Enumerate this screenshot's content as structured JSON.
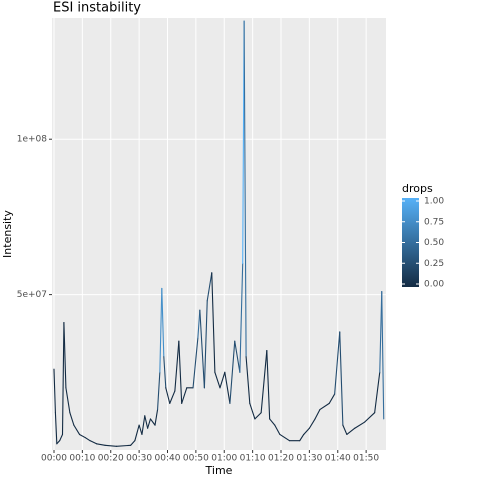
{
  "chart_data": {
    "type": "line",
    "title": "ESI instability",
    "xlabel": "Time",
    "ylabel": "Intensity",
    "x": [
      0,
      0.5,
      1,
      2,
      3,
      3.5,
      4.2,
      5.6,
      7,
      9,
      11,
      12.7,
      15,
      18,
      22,
      27,
      28.5,
      30,
      31,
      32,
      33,
      34,
      35.6,
      36.5,
      37.3,
      38,
      38.7,
      39.4,
      40.8,
      42.6,
      44,
      45,
      46.8,
      49,
      50.7,
      51.4,
      53,
      54,
      55.6,
      56.7,
      58.5,
      60.2,
      62,
      63.7,
      65.5,
      66.5,
      67,
      67.7,
      69,
      70.8,
      73,
      75,
      76,
      77.8,
      79.6,
      83,
      86.6,
      88,
      90,
      92,
      93.7,
      97,
      98.9,
      100.7,
      101.8,
      103.2,
      106,
      109.5,
      113,
      114.8,
      115.5,
      116.2
    ],
    "y": [
      26000000,
      12000000,
      2000000,
      3000000,
      5000000,
      41000000,
      20000000,
      12000000,
      8000000,
      5000000,
      4000000,
      3000000,
      2000000,
      1500000,
      1200000,
      1500000,
      3000000,
      8000000,
      5000000,
      11000000,
      7000000,
      10000000,
      8000000,
      13000000,
      25000000,
      52000000,
      30000000,
      20000000,
      15000000,
      19000000,
      35000000,
      15000000,
      20000000,
      20000000,
      36000000,
      45000000,
      20000000,
      48000000,
      57000000,
      25000000,
      20000000,
      25000000,
      15000000,
      35000000,
      25000000,
      60000000,
      138000000,
      30000000,
      15000000,
      10000000,
      12000000,
      32000000,
      10000000,
      8000000,
      5000000,
      3000000,
      3000000,
      5000000,
      7000000,
      10000000,
      13000000,
      15000000,
      18000000,
      38000000,
      8000000,
      5000000,
      7000000,
      9000000,
      12000000,
      25000000,
      51000000,
      10000000
    ],
    "drops": [
      0,
      0,
      0,
      0,
      0,
      0,
      0,
      0,
      0,
      0,
      0,
      0,
      0,
      0,
      0,
      0,
      0,
      0,
      0,
      0,
      0,
      0,
      0,
      0,
      0.5,
      1,
      0.5,
      0,
      0,
      0,
      0,
      0,
      0,
      0,
      0.5,
      0.5,
      0,
      0.5,
      0,
      0,
      0,
      0,
      0,
      0.5,
      0,
      1,
      1,
      0,
      0,
      0,
      0,
      0,
      0,
      0,
      0,
      0,
      0,
      0,
      0,
      0,
      0,
      0,
      0,
      0.5,
      0,
      0,
      0,
      0,
      0,
      0,
      1,
      0
    ],
    "xlim": [
      -0.7,
      117
    ],
    "ylim": [
      0,
      139000000
    ],
    "xticks": [
      {
        "value": 0,
        "label": "00:00"
      },
      {
        "value": 10,
        "label": "00:10"
      },
      {
        "value": 20,
        "label": "00:20"
      },
      {
        "value": 30,
        "label": "00:30"
      },
      {
        "value": 40,
        "label": "00:40"
      },
      {
        "value": 50,
        "label": "00:50"
      },
      {
        "value": 60,
        "label": "01:00"
      },
      {
        "value": 70,
        "label": "01:10"
      },
      {
        "value": 80,
        "label": "01:20"
      },
      {
        "value": 90,
        "label": "01:30"
      },
      {
        "value": 100,
        "label": "01:40"
      },
      {
        "value": 110,
        "label": "01:50"
      }
    ],
    "yticks": [
      {
        "value": 50000000,
        "label": "5e+07"
      },
      {
        "value": 100000000,
        "label": "1e+08"
      }
    ],
    "grid": true,
    "legend_title": "drops",
    "low_color": "#132b43",
    "high_color": "#56b1f7",
    "color_lim": [
      0,
      1
    ],
    "color_ticks": [
      {
        "value": 1,
        "label": "1.00"
      },
      {
        "value": 0.75,
        "label": "0.75"
      },
      {
        "value": 0.5,
        "label": "0.50"
      },
      {
        "value": 0.25,
        "label": "0.25"
      },
      {
        "value": 0,
        "label": "0.00"
      }
    ]
  }
}
